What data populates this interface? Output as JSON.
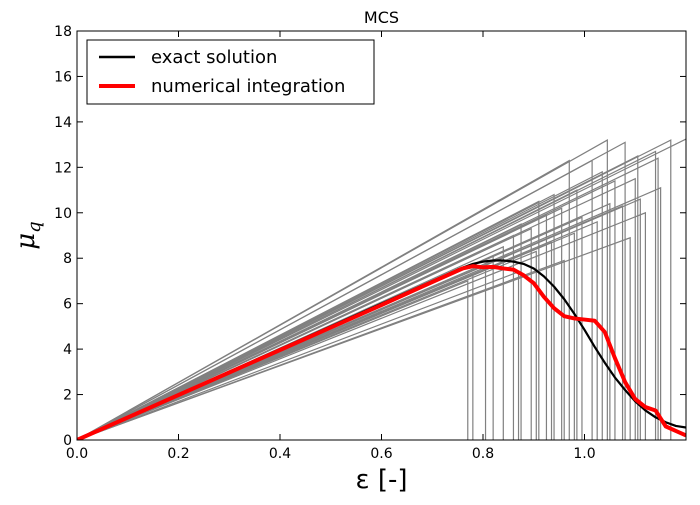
{
  "chart_data": {
    "type": "line",
    "title": "MCS",
    "xlabel": "ε [-]",
    "ylabel": "μ_q",
    "xlim": [
      0.0,
      1.2
    ],
    "ylim": [
      0,
      18
    ],
    "xticks": [
      "0.0",
      "0.2",
      "0.4",
      "0.6",
      "0.8",
      "1.0"
    ],
    "yticks": [
      "0",
      "2",
      "4",
      "6",
      "8",
      "10",
      "12",
      "14",
      "16",
      "18"
    ],
    "grid": false,
    "legend_position": "top-left",
    "legend": [
      {
        "label": "exact solution",
        "color": "#000000"
      },
      {
        "label": "numerical integration",
        "color": "#ff0000"
      }
    ],
    "sample_color": "#808080",
    "samples": [
      {
        "peak_x": 1.045,
        "peak_y": 13.2
      },
      {
        "peak_x": 1.08,
        "peak_y": 13.1
      },
      {
        "peak_x": 1.205,
        "peak_y": 13.3
      },
      {
        "peak_x": 1.17,
        "peak_y": 13.2
      },
      {
        "peak_x": 1.14,
        "peak_y": 12.7
      },
      {
        "peak_x": 1.105,
        "peak_y": 12.5
      },
      {
        "peak_x": 1.015,
        "peak_y": 12.3
      },
      {
        "peak_x": 0.97,
        "peak_y": 12.3
      },
      {
        "peak_x": 1.035,
        "peak_y": 11.8
      },
      {
        "peak_x": 1.145,
        "peak_y": 12.4
      },
      {
        "peak_x": 1.1,
        "peak_y": 11.5
      },
      {
        "peak_x": 1.06,
        "peak_y": 11.4
      },
      {
        "peak_x": 0.985,
        "peak_y": 11.0
      },
      {
        "peak_x": 0.94,
        "peak_y": 10.8
      },
      {
        "peak_x": 1.15,
        "peak_y": 11.1
      },
      {
        "peak_x": 0.91,
        "peak_y": 10.5
      },
      {
        "peak_x": 1.11,
        "peak_y": 10.6
      },
      {
        "peak_x": 1.05,
        "peak_y": 10.4
      },
      {
        "peak_x": 0.955,
        "peak_y": 10.2
      },
      {
        "peak_x": 1.075,
        "peak_y": 10.3
      },
      {
        "peak_x": 1.12,
        "peak_y": 10.0
      },
      {
        "peak_x": 0.925,
        "peak_y": 9.9
      },
      {
        "peak_x": 0.995,
        "peak_y": 9.8
      },
      {
        "peak_x": 0.875,
        "peak_y": 9.5
      },
      {
        "peak_x": 1.025,
        "peak_y": 9.6
      },
      {
        "peak_x": 0.895,
        "peak_y": 9.3
      },
      {
        "peak_x": 0.98,
        "peak_y": 9.1
      },
      {
        "peak_x": 0.86,
        "peak_y": 9.0
      },
      {
        "peak_x": 1.09,
        "peak_y": 8.9
      },
      {
        "peak_x": 0.935,
        "peak_y": 8.7
      },
      {
        "peak_x": 0.84,
        "peak_y": 8.5
      },
      {
        "peak_x": 0.905,
        "peak_y": 8.3
      },
      {
        "peak_x": 0.82,
        "peak_y": 8.1
      },
      {
        "peak_x": 0.96,
        "peak_y": 7.9
      },
      {
        "peak_x": 0.805,
        "peak_y": 7.6
      },
      {
        "peak_x": 0.87,
        "peak_y": 7.4
      },
      {
        "peak_x": 0.78,
        "peak_y": 7.3
      },
      {
        "peak_x": 0.77,
        "peak_y": 7.0
      }
    ],
    "series": [
      {
        "name": "exact solution",
        "x": [
          0.0,
          0.1,
          0.2,
          0.3,
          0.4,
          0.5,
          0.6,
          0.7,
          0.75,
          0.78,
          0.8,
          0.82,
          0.84,
          0.86,
          0.88,
          0.9,
          0.92,
          0.94,
          0.96,
          0.98,
          1.0,
          1.02,
          1.04,
          1.06,
          1.08,
          1.1,
          1.12,
          1.14,
          1.16,
          1.18,
          1.2
        ],
        "y": [
          0.0,
          1.0,
          2.0,
          3.0,
          4.0,
          5.0,
          6.0,
          7.0,
          7.5,
          7.75,
          7.85,
          7.9,
          7.9,
          7.85,
          7.75,
          7.55,
          7.2,
          6.75,
          6.2,
          5.55,
          4.85,
          4.1,
          3.4,
          2.75,
          2.2,
          1.7,
          1.3,
          1.0,
          0.78,
          0.62,
          0.55
        ]
      },
      {
        "name": "numerical integration",
        "x": [
          0.0,
          0.1,
          0.2,
          0.3,
          0.4,
          0.5,
          0.6,
          0.7,
          0.76,
          0.78,
          0.8,
          0.82,
          0.84,
          0.86,
          0.88,
          0.9,
          0.92,
          0.94,
          0.96,
          0.98,
          1.0,
          1.02,
          1.04,
          1.06,
          1.08,
          1.1,
          1.12,
          1.14,
          1.16,
          1.18,
          1.2
        ],
        "y": [
          0.0,
          0.99,
          1.98,
          2.97,
          3.96,
          4.95,
          5.94,
          6.95,
          7.55,
          7.65,
          7.6,
          7.62,
          7.55,
          7.5,
          7.25,
          6.9,
          6.3,
          5.8,
          5.45,
          5.35,
          5.3,
          5.25,
          4.75,
          3.6,
          2.55,
          1.8,
          1.45,
          1.3,
          0.6,
          0.4,
          0.2
        ]
      }
    ]
  }
}
